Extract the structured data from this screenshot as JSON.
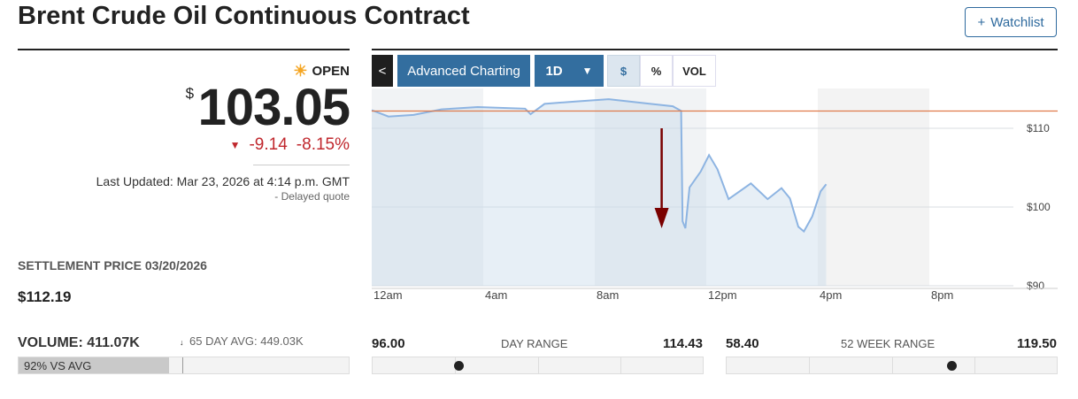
{
  "title": "Brent Crude Oil Continuous Contract",
  "watchlist_label": "Watchlist",
  "status": {
    "icon": "sun-icon",
    "label": "OPEN"
  },
  "quote": {
    "currency": "$",
    "price": "103.05",
    "change": "-9.14",
    "change_pct": "-8.15%",
    "last_updated": "Last Updated: Mar 23, 2026 at 4:14 p.m. GMT",
    "delayed": "Delayed quote"
  },
  "settlement": {
    "label": "SETTLEMENT PRICE 03/20/2026",
    "value": "$112.19"
  },
  "volume": {
    "label": "VOLUME: 411.07K",
    "avg_label": "65 DAY AVG: 449.03K",
    "vs_avg": "92% VS AVG",
    "fill_pct": 92
  },
  "toolbar": {
    "collapse": "<",
    "advanced": "Advanced Charting",
    "period": "1D",
    "modes": [
      "$",
      "%",
      "VOL"
    ],
    "active_mode": "$"
  },
  "colors": {
    "line": "#8db4e2",
    "reference": "#e07a4a",
    "down": "#c0272d",
    "button": "#336e9f",
    "arrow": "#7a0000"
  },
  "chart_data": {
    "type": "area",
    "x_ticks": [
      "12am",
      "4am",
      "8am",
      "12pm",
      "4pm",
      "8pm"
    ],
    "y_ticks": [
      "$110",
      "$100",
      "$90"
    ],
    "ylim": [
      89,
      114
    ],
    "xlim_hours": [
      0,
      23
    ],
    "reference_line": 112.19,
    "points": [
      [
        0,
        112.3
      ],
      [
        0.6,
        111.5
      ],
      [
        1.5,
        111.7
      ],
      [
        2.5,
        112.4
      ],
      [
        3.8,
        112.7
      ],
      [
        5.5,
        112.5
      ],
      [
        5.7,
        111.8
      ],
      [
        6.2,
        113.1
      ],
      [
        7.3,
        113.4
      ],
      [
        8.5,
        113.7
      ],
      [
        10,
        113.1
      ],
      [
        10.8,
        112.8
      ],
      [
        11.1,
        112.2
      ],
      [
        11.15,
        98.2
      ],
      [
        11.25,
        97.3
      ],
      [
        11.4,
        102.5
      ],
      [
        11.8,
        104.5
      ],
      [
        12.1,
        106.6
      ],
      [
        12.4,
        104.8
      ],
      [
        12.8,
        101.0
      ],
      [
        13.6,
        103.0
      ],
      [
        14.2,
        101.0
      ],
      [
        14.7,
        102.4
      ],
      [
        15,
        101.1
      ],
      [
        15.3,
        97.5
      ],
      [
        15.5,
        96.9
      ],
      [
        15.8,
        98.8
      ],
      [
        16.1,
        102.0
      ],
      [
        16.3,
        102.9
      ]
    ],
    "annotation": {
      "type": "down-arrow",
      "hour": 10.4
    }
  },
  "day_range": {
    "low": "96.00",
    "label": "DAY RANGE",
    "high": "114.43",
    "marker": 0.26
  },
  "week52_range": {
    "low": "58.40",
    "label": "52 WEEK RANGE",
    "high": "119.50",
    "marker": 0.68
  }
}
